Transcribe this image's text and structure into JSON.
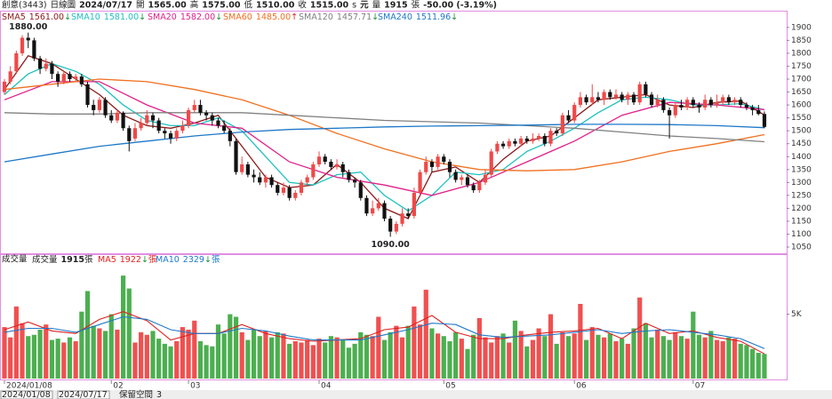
{
  "chart_data": {
    "type": "candlestick",
    "info": [
      {
        "text": "創意(3443)",
        "color": "#555"
      },
      {
        "text": "日線圖",
        "color": "#333"
      },
      {
        "text": "2024/07/17",
        "color": "#000"
      },
      {
        "text": "開",
        "color": "#333"
      },
      {
        "text": "1565.00",
        "color": "#000"
      },
      {
        "text": "高",
        "color": "#333"
      },
      {
        "text": "1575.00",
        "color": "#e02020"
      },
      {
        "text": "低",
        "color": "#333"
      },
      {
        "text": "1510.00",
        "color": "#109030"
      },
      {
        "text": "收",
        "color": "#333"
      },
      {
        "text": "1515.00",
        "color": "#109030"
      },
      {
        "text": "s",
        "color": "#333"
      },
      {
        "text": "元",
        "color": "#333"
      },
      {
        "text": "量",
        "color": "#333"
      },
      {
        "text": "1915",
        "color": "#000"
      },
      {
        "text": "張",
        "color": "#333"
      },
      {
        "text": "-50.00 (-3.19%)",
        "color": "#109030"
      }
    ],
    "xlim": [
      -0.75,
      131.75
    ],
    "ylim": [
      1026,
      1958
    ],
    "yticks": [
      1050,
      1100,
      1150,
      1200,
      1250,
      1300,
      1350,
      1400,
      1450,
      1500,
      1550,
      1600,
      1650,
      1700,
      1750,
      1800,
      1850,
      1900
    ],
    "xticks": [
      {
        "value": 0,
        "label": "2024/01/08"
      },
      {
        "value": 18,
        "label": "02"
      },
      {
        "value": 31,
        "label": "03"
      },
      {
        "value": 53,
        "label": "04"
      },
      {
        "value": 74,
        "label": "05"
      },
      {
        "value": 96,
        "label": "06"
      },
      {
        "value": 116,
        "label": "07"
      }
    ],
    "up_color": "#f04848",
    "down_color": "#111111",
    "open": [
      1650,
      1690,
      1730,
      1800,
      1860,
      1850,
      1780,
      1740,
      1760,
      1720,
      1690,
      1720,
      1700,
      1710,
      1680,
      1600,
      1580,
      1620,
      1560,
      1540,
      1570,
      1510,
      1470,
      1510,
      1530,
      1560,
      1540,
      1500,
      1490,
      1470,
      1500,
      1520,
      1580,
      1600,
      1570,
      1560,
      1540,
      1520,
      1500,
      1460,
      1340,
      1370,
      1330,
      1320,
      1300,
      1320,
      1290,
      1260,
      1280,
      1240,
      1260,
      1300,
      1320,
      1370,
      1400,
      1380,
      1360,
      1370,
      1340,
      1310,
      1300,
      1240,
      1180,
      1200,
      1220,
      1160,
      1110,
      1140,
      1180,
      1170,
      1260,
      1340,
      1380,
      1360,
      1400,
      1380,
      1340,
      1310,
      1320,
      1290,
      1270,
      1300,
      1330,
      1420,
      1450,
      1440,
      1460,
      1450,
      1470,
      1460,
      1470,
      1480,
      1450,
      1500,
      1490,
      1560,
      1540,
      1600,
      1630,
      1610,
      1630,
      1620,
      1650,
      1630,
      1640,
      1620,
      1640,
      1610,
      1680,
      1640,
      1600,
      1620,
      1580,
      1560,
      1600,
      1590,
      1620,
      1600,
      1590,
      1620,
      1600,
      1610,
      1630,
      1610,
      1620,
      1600,
      1590,
      1580,
      1565
    ],
    "close": [
      1690,
      1730,
      1800,
      1860,
      1850,
      1780,
      1740,
      1760,
      1720,
      1690,
      1720,
      1700,
      1710,
      1680,
      1600,
      1580,
      1620,
      1560,
      1540,
      1570,
      1510,
      1460,
      1510,
      1530,
      1560,
      1540,
      1500,
      1490,
      1470,
      1500,
      1520,
      1580,
      1600,
      1570,
      1560,
      1540,
      1520,
      1500,
      1460,
      1340,
      1370,
      1330,
      1320,
      1300,
      1320,
      1290,
      1260,
      1280,
      1240,
      1260,
      1300,
      1320,
      1370,
      1400,
      1380,
      1360,
      1370,
      1340,
      1310,
      1300,
      1240,
      1180,
      1200,
      1220,
      1160,
      1110,
      1140,
      1180,
      1170,
      1260,
      1340,
      1380,
      1360,
      1400,
      1380,
      1340,
      1310,
      1320,
      1290,
      1270,
      1300,
      1330,
      1420,
      1450,
      1440,
      1460,
      1450,
      1470,
      1460,
      1470,
      1480,
      1450,
      1500,
      1490,
      1560,
      1540,
      1600,
      1630,
      1610,
      1630,
      1620,
      1650,
      1630,
      1640,
      1620,
      1640,
      1610,
      1680,
      1640,
      1600,
      1620,
      1580,
      1560,
      1600,
      1590,
      1620,
      1600,
      1590,
      1620,
      1600,
      1610,
      1630,
      1610,
      1620,
      1600,
      1590,
      1580,
      1565,
      1515
    ],
    "high": [
      1700,
      1750,
      1810,
      1870,
      1880,
      1860,
      1790,
      1780,
      1770,
      1730,
      1730,
      1730,
      1720,
      1720,
      1690,
      1620,
      1630,
      1630,
      1580,
      1580,
      1575,
      1520,
      1530,
      1550,
      1580,
      1570,
      1550,
      1510,
      1500,
      1510,
      1540,
      1590,
      1620,
      1620,
      1580,
      1570,
      1550,
      1540,
      1510,
      1470,
      1400,
      1380,
      1350,
      1340,
      1330,
      1330,
      1300,
      1300,
      1290,
      1270,
      1310,
      1330,
      1380,
      1420,
      1410,
      1390,
      1390,
      1380,
      1350,
      1320,
      1310,
      1250,
      1230,
      1240,
      1230,
      1170,
      1150,
      1200,
      1200,
      1280,
      1350,
      1400,
      1390,
      1410,
      1410,
      1390,
      1350,
      1330,
      1330,
      1300,
      1310,
      1350,
      1430,
      1460,
      1460,
      1470,
      1470,
      1480,
      1480,
      1490,
      1490,
      1490,
      1510,
      1510,
      1570,
      1580,
      1610,
      1650,
      1640,
      1680,
      1650,
      1660,
      1660,
      1660,
      1650,
      1650,
      1650,
      1690,
      1690,
      1650,
      1640,
      1630,
      1590,
      1610,
      1620,
      1630,
      1630,
      1610,
      1640,
      1630,
      1640,
      1640,
      1640,
      1630,
      1630,
      1610,
      1600,
      1600,
      1575
    ],
    "low": [
      1640,
      1680,
      1720,
      1790,
      1820,
      1770,
      1720,
      1730,
      1700,
      1670,
      1680,
      1690,
      1690,
      1670,
      1590,
      1560,
      1570,
      1550,
      1530,
      1530,
      1500,
      1420,
      1460,
      1500,
      1520,
      1510,
      1490,
      1470,
      1450,
      1460,
      1490,
      1510,
      1570,
      1560,
      1540,
      1520,
      1510,
      1490,
      1440,
      1330,
      1330,
      1320,
      1300,
      1290,
      1280,
      1280,
      1250,
      1250,
      1230,
      1230,
      1250,
      1290,
      1310,
      1360,
      1370,
      1350,
      1350,
      1320,
      1300,
      1280,
      1230,
      1170,
      1170,
      1190,
      1150,
      1090,
      1100,
      1130,
      1160,
      1160,
      1250,
      1330,
      1340,
      1350,
      1370,
      1320,
      1300,
      1290,
      1280,
      1260,
      1260,
      1290,
      1320,
      1410,
      1430,
      1430,
      1440,
      1440,
      1450,
      1450,
      1460,
      1440,
      1440,
      1480,
      1480,
      1530,
      1530,
      1590,
      1600,
      1600,
      1610,
      1600,
      1620,
      1620,
      1610,
      1600,
      1600,
      1600,
      1630,
      1590,
      1590,
      1570,
      1470,
      1550,
      1580,
      1580,
      1590,
      1570,
      1580,
      1590,
      1590,
      1600,
      1600,
      1600,
      1590,
      1580,
      1560,
      1560,
      1510
    ],
    "annotations": [
      {
        "x": 4,
        "value": 1880,
        "label": "1880.00",
        "at": "high"
      },
      {
        "x": 65,
        "value": 1090,
        "label": "1090.00",
        "at": "low"
      }
    ],
    "ma": [
      {
        "name": "SMA5",
        "color": "#8b1a1a",
        "legend_value": "1561.00",
        "arrow": "↓",
        "arrow_color": "#109030",
        "x": [
          0,
          4,
          8,
          12,
          16,
          20,
          24,
          28,
          32,
          36,
          40,
          44,
          48,
          52,
          56,
          60,
          64,
          68,
          72,
          76,
          80,
          84,
          88,
          92,
          96,
          100,
          104,
          108,
          112,
          116,
          120,
          124,
          128
        ],
        "values": [
          1660,
          1790,
          1760,
          1700,
          1640,
          1560,
          1520,
          1510,
          1530,
          1560,
          1440,
          1320,
          1280,
          1290,
          1370,
          1300,
          1200,
          1160,
          1340,
          1360,
          1300,
          1390,
          1460,
          1480,
          1550,
          1620,
          1630,
          1640,
          1600,
          1590,
          1610,
          1615,
          1561
        ]
      },
      {
        "name": "SMA10",
        "color": "#20c0c0",
        "legend_value": "1581.00",
        "arrow": "↓",
        "arrow_color": "#109030",
        "x": [
          0,
          4,
          8,
          12,
          16,
          20,
          24,
          28,
          32,
          36,
          40,
          44,
          48,
          52,
          56,
          60,
          64,
          68,
          72,
          76,
          80,
          84,
          88,
          92,
          96,
          100,
          104,
          108,
          112,
          116,
          120,
          124,
          128
        ],
        "values": [
          1640,
          1720,
          1760,
          1730,
          1680,
          1600,
          1540,
          1520,
          1520,
          1550,
          1500,
          1400,
          1300,
          1290,
          1330,
          1340,
          1250,
          1190,
          1250,
          1340,
          1330,
          1350,
          1420,
          1460,
          1510,
          1570,
          1620,
          1630,
          1620,
          1600,
          1600,
          1605,
          1581
        ]
      },
      {
        "name": "SMA20",
        "color": "#e0208a",
        "legend_value": "1582.00",
        "arrow": "↓",
        "arrow_color": "#109030",
        "x": [
          0,
          8,
          16,
          24,
          32,
          40,
          48,
          56,
          64,
          72,
          80,
          88,
          96,
          104,
          112,
          120,
          128
        ],
        "values": [
          1620,
          1690,
          1690,
          1600,
          1530,
          1510,
          1380,
          1320,
          1290,
          1250,
          1300,
          1380,
          1460,
          1560,
          1610,
          1600,
          1582
        ]
      },
      {
        "name": "SMA60",
        "color": "#f07020",
        "legend_value": "1485.00",
        "arrow": "↑",
        "arrow_color": "#e02020",
        "x": [
          0,
          8,
          16,
          24,
          32,
          40,
          48,
          56,
          64,
          72,
          80,
          88,
          96,
          104,
          112,
          120,
          128
        ],
        "values": [
          1660,
          1680,
          1700,
          1690,
          1660,
          1620,
          1560,
          1490,
          1430,
          1380,
          1350,
          1345,
          1350,
          1380,
          1420,
          1450,
          1485
        ]
      },
      {
        "name": "SMA120",
        "color": "#808080",
        "legend_value": "1457.71",
        "arrow": "↓",
        "arrow_color": "#109030",
        "x": [
          0,
          8,
          16,
          24,
          32,
          40,
          48,
          56,
          64,
          72,
          80,
          88,
          96,
          104,
          112,
          120,
          128
        ],
        "values": [
          1570,
          1565,
          1565,
          1570,
          1570,
          1570,
          1560,
          1550,
          1540,
          1535,
          1530,
          1520,
          1510,
          1495,
          1480,
          1470,
          1457.71
        ]
      },
      {
        "name": "SMA240",
        "color": "#1e78c8",
        "legend_value": "1511.96",
        "arrow": "↓",
        "arrow_color": "#109030",
        "x": [
          0,
          8,
          16,
          24,
          32,
          40,
          48,
          56,
          64,
          72,
          80,
          88,
          96,
          104,
          112,
          120,
          128
        ],
        "values": [
          1380,
          1410,
          1440,
          1460,
          1480,
          1495,
          1505,
          1510,
          1515,
          1518,
          1520,
          1522,
          1525,
          1525,
          1524,
          1520,
          1511.96
        ]
      }
    ],
    "volume": {
      "title": "成交量",
      "label": "成交量",
      "last": "1915",
      "unit": "張",
      "up_color": "#f05050",
      "down_color": "#4caf50",
      "ylim": [
        0,
        8700
      ],
      "yticks": [
        {
          "value": 5000,
          "label": "5K"
        }
      ],
      "values": [
        4000,
        3200,
        5600,
        4300,
        3300,
        3400,
        3800,
        4200,
        3000,
        3100,
        2800,
        3200,
        2900,
        5200,
        6800,
        4100,
        3900,
        3700,
        5000,
        3800,
        8000,
        7000,
        2800,
        3600,
        3400,
        3700,
        3100,
        2700,
        2500,
        2900,
        4000,
        3800,
        4500,
        2900,
        2600,
        2500,
        4200,
        3500,
        5000,
        4800,
        3600,
        3000,
        3800,
        3300,
        3700,
        3200,
        3600,
        3500,
        2700,
        2900,
        2800,
        3000,
        2600,
        3100,
        2800,
        3300,
        3200,
        3000,
        2400,
        2700,
        3600,
        3400,
        3300,
        4800,
        3000,
        3600,
        4100,
        3200,
        4100,
        5600,
        4200,
        6900,
        3900,
        3500,
        3300,
        2900,
        3600,
        3100,
        2300,
        3400,
        4700,
        3200,
        2800,
        3300,
        3500,
        2800,
        4500,
        3700,
        2500,
        3000,
        3900,
        3300,
        5000,
        2700,
        3600,
        3300,
        3500,
        5800,
        3000,
        4000,
        3400,
        3200,
        3500,
        2900,
        3100,
        2700,
        3900,
        6300,
        4300,
        3200,
        3800,
        3300,
        3000,
        3600,
        3300,
        3100,
        5200,
        3400,
        3200,
        3700,
        3000,
        2900,
        3200,
        3100,
        2700,
        2600,
        2300,
        2000,
        1915
      ],
      "ma": [
        {
          "name": "MA5",
          "color": "#e02020",
          "legend_value": "1922",
          "arrow": "↓",
          "arrow_color": "#109030",
          "x": [
            0,
            4,
            8,
            12,
            16,
            20,
            24,
            28,
            32,
            36,
            40,
            44,
            48,
            52,
            56,
            60,
            64,
            68,
            72,
            76,
            80,
            84,
            88,
            92,
            96,
            100,
            104,
            108,
            112,
            116,
            120,
            124,
            128
          ],
          "values": [
            3800,
            4400,
            3700,
            3500,
            4600,
            5200,
            4500,
            3000,
            3500,
            3500,
            4200,
            3500,
            3100,
            2900,
            3000,
            3100,
            3800,
            4000,
            4900,
            3600,
            3100,
            3100,
            3400,
            3600,
            3700,
            3900,
            3100,
            4300,
            3500,
            3700,
            3200,
            2900,
            1922
          ]
        },
        {
          "name": "MA10",
          "color": "#1e78c8",
          "legend_value": "2329",
          "arrow": "↓",
          "arrow_color": "#109030",
          "x": [
            0,
            4,
            8,
            12,
            16,
            20,
            24,
            28,
            32,
            36,
            40,
            44,
            48,
            52,
            56,
            60,
            64,
            68,
            72,
            76,
            80,
            84,
            88,
            92,
            96,
            100,
            104,
            108,
            112,
            116,
            120,
            124,
            128
          ],
          "values": [
            3600,
            3900,
            3900,
            3600,
            4200,
            4800,
            4600,
            3800,
            3500,
            3500,
            3900,
            3700,
            3300,
            3000,
            3000,
            3000,
            3400,
            3800,
            4300,
            4200,
            3400,
            3200,
            3300,
            3400,
            3600,
            3800,
            3500,
            3700,
            3800,
            3600,
            3400,
            3100,
            2329
          ]
        }
      ]
    },
    "footer": [
      "2024/01/08",
      "2024/07/17",
      "保留空間",
      "3"
    ]
  }
}
